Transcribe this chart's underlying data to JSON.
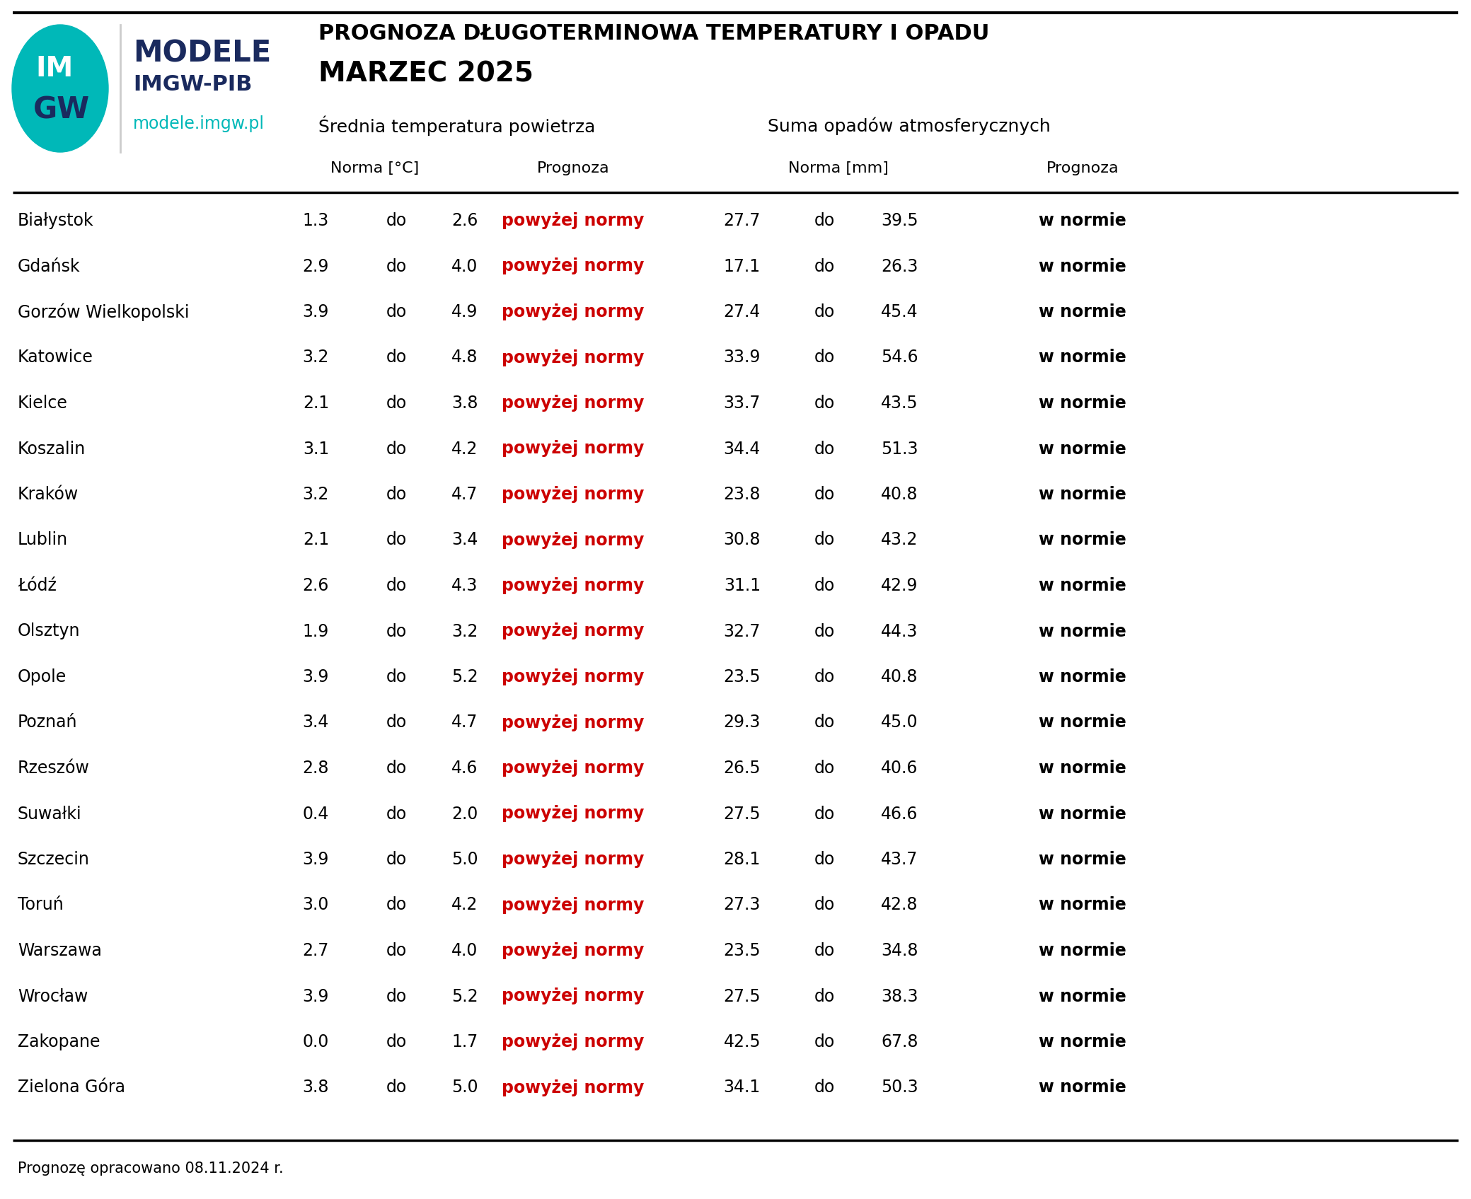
{
  "title_line1": "PROGNOZA DŁUGOTERMINOWA TEMPERATURY I OPADU",
  "title_line2": "MARZEC 2025",
  "sec_header1": "Średniatemperat ura powietrza",
  "sec_header1_real": "Średnia temperatura powietrza",
  "sec_header2": "Suma opadów atmosferycznych",
  "col_h_norma_temp": "Norma [°C]",
  "col_h_prognoza": "Prognoza",
  "col_h_norma_prec": "Norma [mm]",
  "footer": "Prognozę opracowano 08.11.2024 r.",
  "cities": [
    "Białystok",
    "Gdańsk",
    "Gorzów Wielkopolski",
    "Katowice",
    "Kielce",
    "Koszalin",
    "Kraków",
    "Lublin",
    "Łódź",
    "Olsztyn",
    "Opole",
    "Poznań",
    "Rzeszów",
    "Suwałki",
    "Szczecin",
    "Toruń",
    "Warszawa",
    "Wrocław",
    "Zakopane",
    "Zielona Góra"
  ],
  "norma_temp_low": [
    1.3,
    2.9,
    3.9,
    3.2,
    2.1,
    3.1,
    3.2,
    2.1,
    2.6,
    1.9,
    3.9,
    3.4,
    2.8,
    0.4,
    3.9,
    3.0,
    2.7,
    3.9,
    0.0,
    3.8
  ],
  "norma_temp_high": [
    2.6,
    4.0,
    4.9,
    4.8,
    3.8,
    4.2,
    4.7,
    3.4,
    4.3,
    3.2,
    5.2,
    4.7,
    4.6,
    2.0,
    5.0,
    4.2,
    4.0,
    5.2,
    1.7,
    5.0
  ],
  "prognoza_temp": "powyżej normy",
  "norma_prec_low": [
    27.7,
    17.1,
    27.4,
    33.9,
    33.7,
    34.4,
    23.8,
    30.8,
    31.1,
    32.7,
    23.5,
    29.3,
    26.5,
    27.5,
    28.1,
    27.3,
    23.5,
    27.5,
    42.5,
    34.1
  ],
  "norma_prec_high": [
    39.5,
    26.3,
    45.4,
    54.6,
    43.5,
    51.3,
    40.8,
    43.2,
    42.9,
    44.3,
    40.8,
    45.0,
    40.6,
    46.6,
    43.7,
    42.8,
    34.8,
    38.3,
    67.8,
    50.3
  ],
  "prognoza_prec": "w normie",
  "temp_prognoza_color": "#cc0000",
  "prec_prognoza_color": "#000000",
  "background_color": "#ffffff",
  "text_color": "#000000",
  "line_color": "#000000",
  "logo_teal": "#00b8b8",
  "logo_dark": "#1a2a5e",
  "modele_color": "#1a2a5e",
  "url_color": "#00b8b8"
}
